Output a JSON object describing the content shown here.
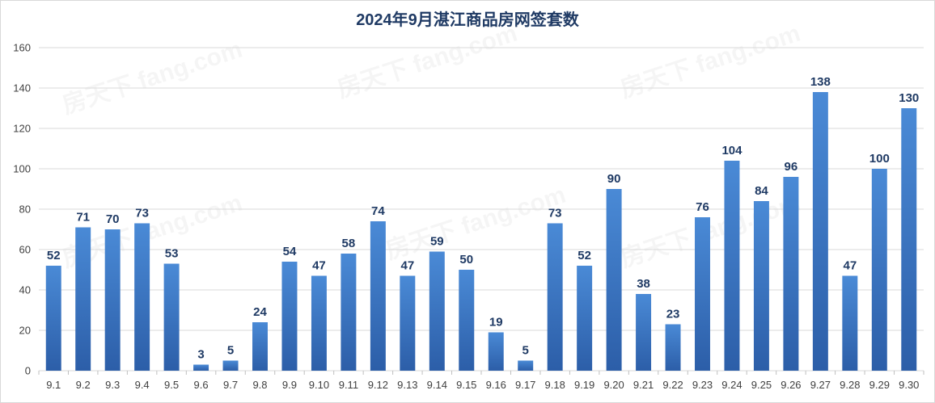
{
  "chart_data": {
    "type": "bar",
    "title": "2024年9月湛江商品房网签套数",
    "xlabel": "",
    "ylabel": "",
    "ylim": [
      0,
      160
    ],
    "yticks": [
      0,
      20,
      40,
      60,
      80,
      100,
      120,
      140,
      160
    ],
    "grid": true,
    "legend": "none",
    "categories": [
      "9.1",
      "9.2",
      "9.3",
      "9.4",
      "9.5",
      "9.6",
      "9.7",
      "9.8",
      "9.9",
      "9.10",
      "9.11",
      "9.12",
      "9.13",
      "9.14",
      "9.15",
      "9.16",
      "9.17",
      "9.18",
      "9.19",
      "9.20",
      "9.21",
      "9.22",
      "9.23",
      "9.24",
      "9.25",
      "9.26",
      "9.27",
      "9.28",
      "9.29",
      "9.30"
    ],
    "values": [
      52,
      71,
      70,
      73,
      53,
      3,
      5,
      24,
      54,
      47,
      58,
      74,
      47,
      59,
      50,
      19,
      5,
      73,
      52,
      90,
      38,
      23,
      76,
      104,
      84,
      96,
      138,
      47,
      100,
      130
    ]
  },
  "colors": {
    "bar_top": "#4a8ad6",
    "bar_bottom": "#2c5ea8",
    "label": "#1f3a64",
    "title": "#1f3a64"
  }
}
